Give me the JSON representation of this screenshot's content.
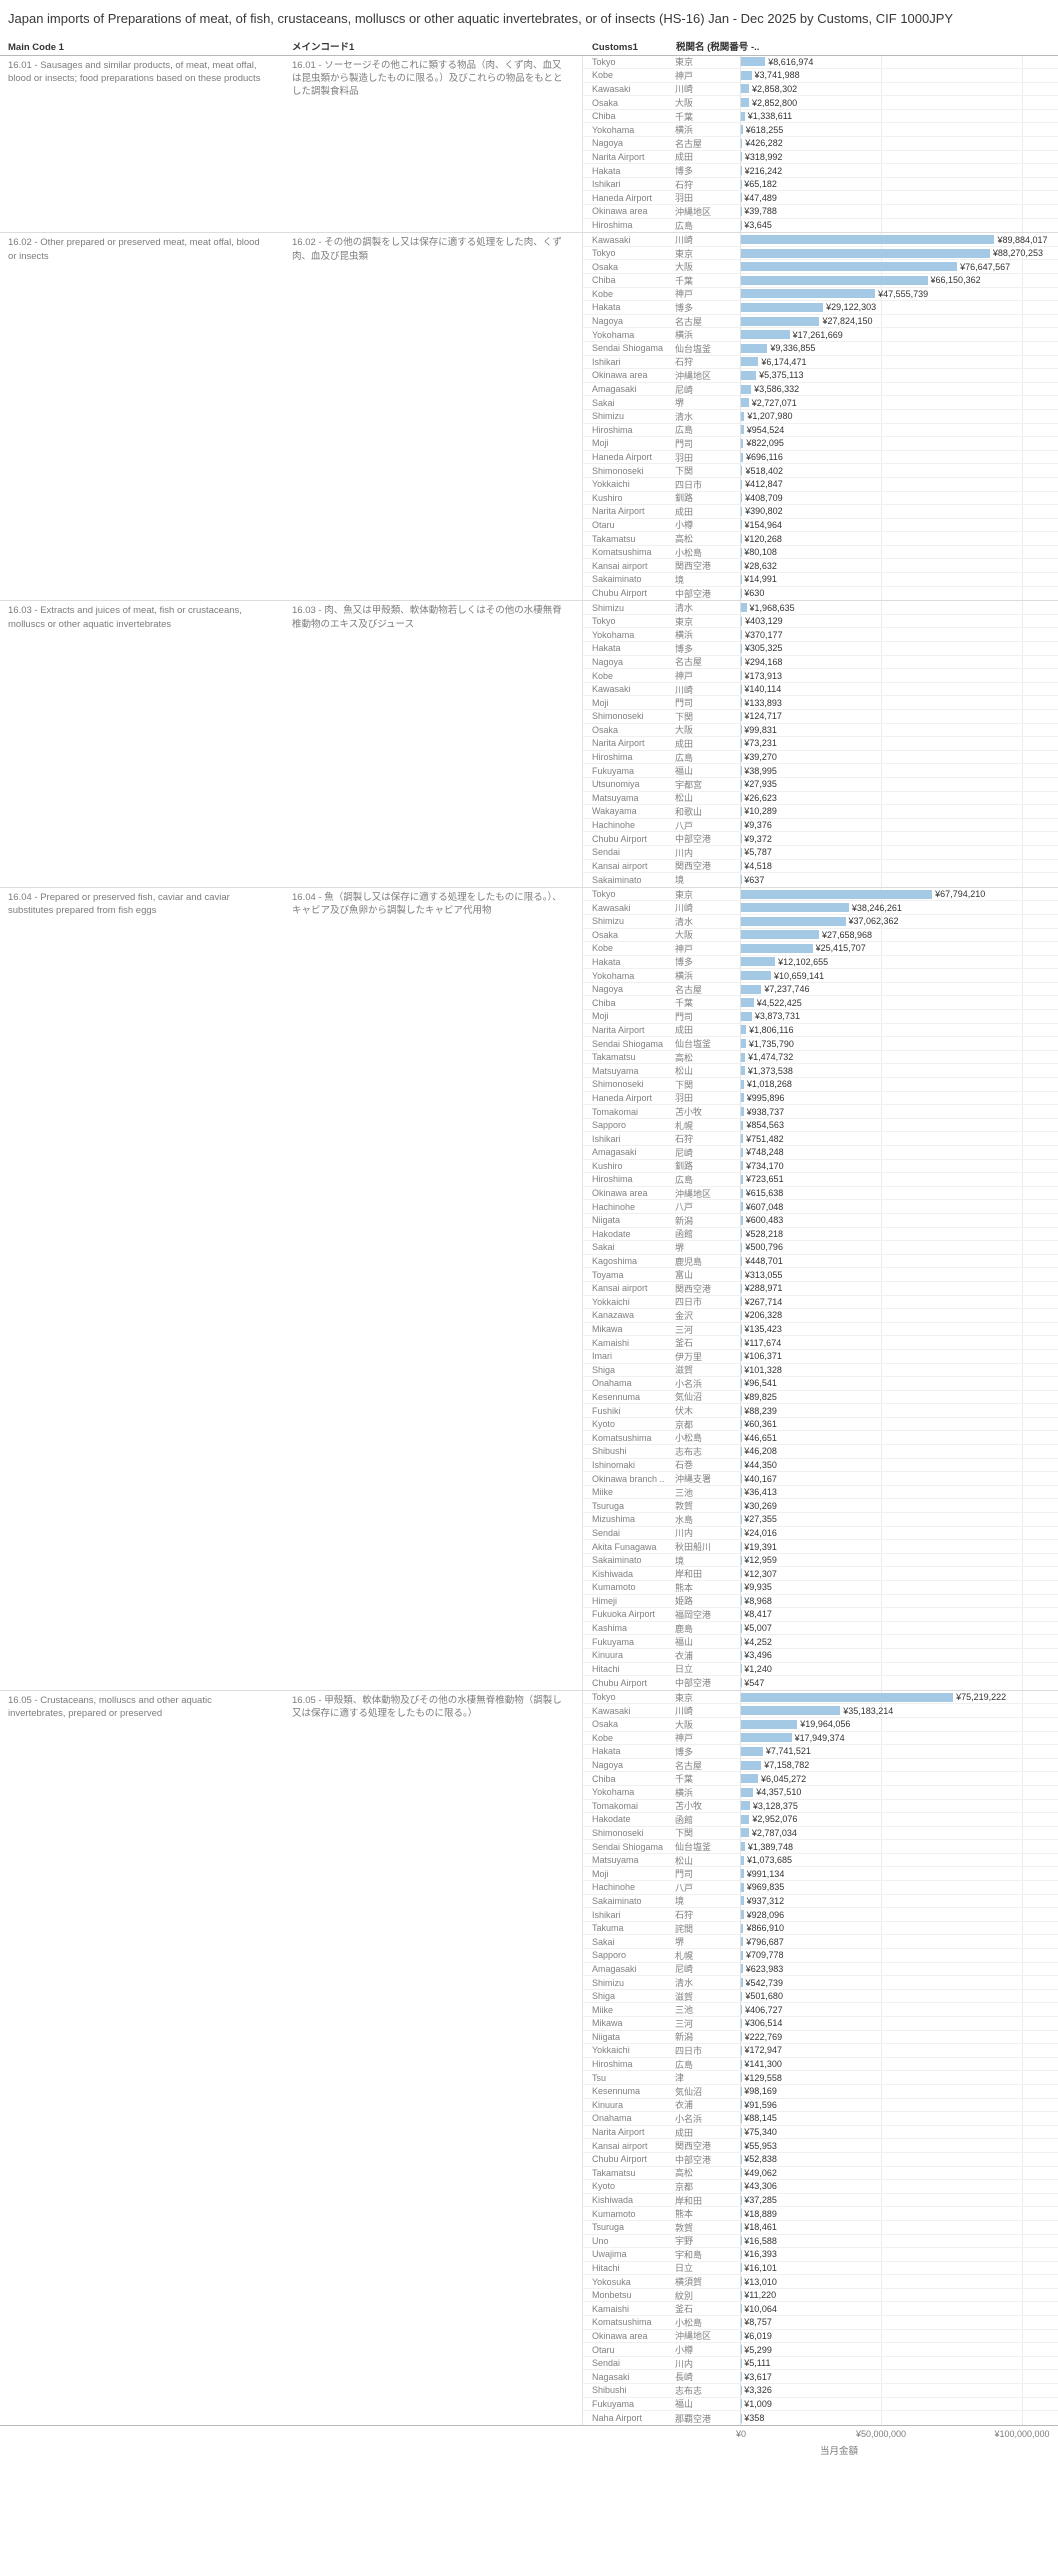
{
  "title": "Japan imports of Preparations of meat, of fish, crustaceans, molluscs or other aquatic invertebrates, or of insects (HS-16) Jan - Dec 2025 by Customs, CIF 1000JPY",
  "columns": {
    "main_code": "Main Code 1",
    "main_code_jp": "メインコード1",
    "customs": "Customs1",
    "customs_jp": "税関名 (税関番号 -.."
  },
  "colors": {
    "bar": "#a3c9e5"
  },
  "chart_data": {
    "type": "bar",
    "orientation": "horizontal",
    "xlabel": "当月金額",
    "xlim": [
      0,
      100000000
    ],
    "x_ticks": [
      0,
      50000000,
      100000000
    ],
    "x_tick_labels": [
      "¥0",
      "¥50,000,000",
      "¥100,000,000"
    ],
    "grid": "vertical",
    "value_prefix": "¥",
    "sections": [
      {
        "code": "16.01",
        "label_en": "16.01 - Sausages and similar products, of meat, meat offal, blood or insects; food preparations based on these products",
        "label_ja": "16.01 - ソーセージその他これに類する物品（肉、くず肉、血又は昆虫類から製造したものに限る。）及びこれらの物品をもととした調製食料品",
        "rows": [
          [
            "Tokyo",
            "東京",
            8616974
          ],
          [
            "Kobe",
            "神戸",
            3741988
          ],
          [
            "Kawasaki",
            "川崎",
            2858302
          ],
          [
            "Osaka",
            "大阪",
            2852800
          ],
          [
            "Chiba",
            "千葉",
            1338611
          ],
          [
            "Yokohama",
            "横浜",
            618255
          ],
          [
            "Nagoya",
            "名古屋",
            426282
          ],
          [
            "Narita Airport",
            "成田",
            318992
          ],
          [
            "Hakata",
            "博多",
            216242
          ],
          [
            "Ishikari",
            "石狩",
            65182
          ],
          [
            "Haneda Airport",
            "羽田",
            47489
          ],
          [
            "Okinawa area",
            "沖縄地区",
            39788
          ],
          [
            "Hiroshima",
            "広島",
            3645
          ]
        ]
      },
      {
        "code": "16.02",
        "label_en": "16.02 - Other prepared or preserved meat, meat offal, blood or insects",
        "label_ja": "16.02 - その他の調製をし又は保存に適する処理をした肉、くず肉、血及び昆虫類",
        "rows": [
          [
            "Kawasaki",
            "川崎",
            89884017
          ],
          [
            "Tokyo",
            "東京",
            88270253
          ],
          [
            "Osaka",
            "大阪",
            76647567
          ],
          [
            "Chiba",
            "千葉",
            66150362
          ],
          [
            "Kobe",
            "神戸",
            47555739
          ],
          [
            "Hakata",
            "博多",
            29122303
          ],
          [
            "Nagoya",
            "名古屋",
            27824150
          ],
          [
            "Yokohama",
            "横浜",
            17261669
          ],
          [
            "Sendai Shiogama",
            "仙台塩釜",
            9336855
          ],
          [
            "Ishikari",
            "石狩",
            6174471
          ],
          [
            "Okinawa area",
            "沖縄地区",
            5375113
          ],
          [
            "Amagasaki",
            "尼崎",
            3586332
          ],
          [
            "Sakai",
            "堺",
            2727071
          ],
          [
            "Shimizu",
            "清水",
            1207980
          ],
          [
            "Hiroshima",
            "広島",
            954524
          ],
          [
            "Moji",
            "門司",
            822095
          ],
          [
            "Haneda Airport",
            "羽田",
            696116
          ],
          [
            "Shimonoseki",
            "下関",
            518402
          ],
          [
            "Yokkaichi",
            "四日市",
            412847
          ],
          [
            "Kushiro",
            "釧路",
            408709
          ],
          [
            "Narita Airport",
            "成田",
            390802
          ],
          [
            "Otaru",
            "小樽",
            154964
          ],
          [
            "Takamatsu",
            "高松",
            120268
          ],
          [
            "Komatsushima",
            "小松島",
            80108
          ],
          [
            "Kansai airport",
            "関西空港",
            28632
          ],
          [
            "Sakaiminato",
            "境",
            14991
          ],
          [
            "Chubu Airport",
            "中部空港",
            630
          ]
        ]
      },
      {
        "code": "16.03",
        "label_en": "16.03 - Extracts and juices of meat, fish or crustaceans, molluscs or other aquatic invertebrates",
        "label_ja": "16.03 - 肉、魚又は甲殻類、軟体動物若しくはその他の水棲無脊椎動物のエキス及びジュース",
        "rows": [
          [
            "Shimizu",
            "清水",
            1968635
          ],
          [
            "Tokyo",
            "東京",
            403129
          ],
          [
            "Yokohama",
            "横浜",
            370177
          ],
          [
            "Hakata",
            "博多",
            305325
          ],
          [
            "Nagoya",
            "名古屋",
            294168
          ],
          [
            "Kobe",
            "神戸",
            173913
          ],
          [
            "Kawasaki",
            "川崎",
            140114
          ],
          [
            "Moji",
            "門司",
            133893
          ],
          [
            "Shimonoseki",
            "下関",
            124717
          ],
          [
            "Osaka",
            "大阪",
            99831
          ],
          [
            "Narita Airport",
            "成田",
            73231
          ],
          [
            "Hiroshima",
            "広島",
            39270
          ],
          [
            "Fukuyama",
            "福山",
            38995
          ],
          [
            "Utsunomiya",
            "宇都宮",
            27935
          ],
          [
            "Matsuyama",
            "松山",
            26623
          ],
          [
            "Wakayama",
            "和歌山",
            10289
          ],
          [
            "Hachinohe",
            "八戸",
            9376
          ],
          [
            "Chubu Airport",
            "中部空港",
            9372
          ],
          [
            "Sendai",
            "川内",
            5787
          ],
          [
            "Kansai airport",
            "関西空港",
            4518
          ],
          [
            "Sakaiminato",
            "境",
            637
          ]
        ]
      },
      {
        "code": "16.04",
        "label_en": "16.04 - Prepared or preserved fish, caviar and caviar substitutes prepared from fish eggs",
        "label_ja": "16.04 - 魚（調製し又は保存に適する処理をしたものに限る。）、キャビア及び魚卵から調製したキャビア代用物",
        "rows": [
          [
            "Tokyo",
            "東京",
            67794210
          ],
          [
            "Kawasaki",
            "川崎",
            38246261
          ],
          [
            "Shimizu",
            "清水",
            37062362
          ],
          [
            "Osaka",
            "大阪",
            27658968
          ],
          [
            "Kobe",
            "神戸",
            25415707
          ],
          [
            "Hakata",
            "博多",
            12102655
          ],
          [
            "Yokohama",
            "横浜",
            10659141
          ],
          [
            "Nagoya",
            "名古屋",
            7237746
          ],
          [
            "Chiba",
            "千葉",
            4522425
          ],
          [
            "Moji",
            "門司",
            3873731
          ],
          [
            "Narita Airport",
            "成田",
            1806116
          ],
          [
            "Sendai Shiogama",
            "仙台塩釜",
            1735790
          ],
          [
            "Takamatsu",
            "高松",
            1474732
          ],
          [
            "Matsuyama",
            "松山",
            1373538
          ],
          [
            "Shimonoseki",
            "下関",
            1018268
          ],
          [
            "Haneda Airport",
            "羽田",
            995896
          ],
          [
            "Tomakomai",
            "苫小牧",
            938737
          ],
          [
            "Sapporo",
            "札幌",
            854563
          ],
          [
            "Ishikari",
            "石狩",
            751482
          ],
          [
            "Amagasaki",
            "尼崎",
            748248
          ],
          [
            "Kushiro",
            "釧路",
            734170
          ],
          [
            "Hiroshima",
            "広島",
            723651
          ],
          [
            "Okinawa area",
            "沖縄地区",
            615638
          ],
          [
            "Hachinohe",
            "八戸",
            607048
          ],
          [
            "Niigata",
            "新潟",
            600483
          ],
          [
            "Hakodate",
            "函館",
            528218
          ],
          [
            "Sakai",
            "堺",
            500796
          ],
          [
            "Kagoshima",
            "鹿児島",
            448701
          ],
          [
            "Toyama",
            "富山",
            313055
          ],
          [
            "Kansai airport",
            "関西空港",
            288971
          ],
          [
            "Yokkaichi",
            "四日市",
            267714
          ],
          [
            "Kanazawa",
            "金沢",
            206328
          ],
          [
            "Mikawa",
            "三河",
            135423
          ],
          [
            "Kamaishi",
            "釜石",
            117674
          ],
          [
            "Imari",
            "伊万里",
            106371
          ],
          [
            "Shiga",
            "滋賀",
            101328
          ],
          [
            "Onahama",
            "小名浜",
            96541
          ],
          [
            "Kesennuma",
            "気仙沼",
            89825
          ],
          [
            "Fushiki",
            "伏木",
            88239
          ],
          [
            "Kyoto",
            "京都",
            60361
          ],
          [
            "Komatsushima",
            "小松島",
            46651
          ],
          [
            "Shibushi",
            "志布志",
            46208
          ],
          [
            "Ishinomaki",
            "石巻",
            44350
          ],
          [
            "Okinawa branch ..",
            "沖縄支署",
            40167
          ],
          [
            "Miike",
            "三池",
            36413
          ],
          [
            "Tsuruga",
            "敦賀",
            30269
          ],
          [
            "Mizushima",
            "水島",
            27355
          ],
          [
            "Sendai",
            "川内",
            24016
          ],
          [
            "Akita Funagawa",
            "秋田船川",
            19391
          ],
          [
            "Sakaiminato",
            "境",
            12959
          ],
          [
            "Kishiwada",
            "岸和田",
            12307
          ],
          [
            "Kumamoto",
            "熊本",
            9935
          ],
          [
            "Himeji",
            "姫路",
            8968
          ],
          [
            "Fukuoka Airport",
            "福岡空港",
            8417
          ],
          [
            "Kashima",
            "鹿島",
            5007
          ],
          [
            "Fukuyama",
            "福山",
            4252
          ],
          [
            "Kinuura",
            "衣浦",
            3496
          ],
          [
            "Hitachi",
            "日立",
            1240
          ],
          [
            "Chubu Airport",
            "中部空港",
            547
          ]
        ]
      },
      {
        "code": "16.05",
        "label_en": "16.05 - Crustaceans, molluscs and other aquatic invertebrates, prepared or preserved",
        "label_ja": "16.05 - 甲殻類、軟体動物及びその他の水棲無脊椎動物（調製し又は保存に適する処理をしたものに限る。）",
        "rows": [
          [
            "Tokyo",
            "東京",
            75219222
          ],
          [
            "Kawasaki",
            "川崎",
            35183214
          ],
          [
            "Osaka",
            "大阪",
            19964056
          ],
          [
            "Kobe",
            "神戸",
            17949374
          ],
          [
            "Hakata",
            "博多",
            7741521
          ],
          [
            "Nagoya",
            "名古屋",
            7158782
          ],
          [
            "Chiba",
            "千葉",
            6045272
          ],
          [
            "Yokohama",
            "横浜",
            4357510
          ],
          [
            "Tomakomai",
            "苫小牧",
            3128375
          ],
          [
            "Hakodate",
            "函館",
            2952076
          ],
          [
            "Shimonoseki",
            "下関",
            2787034
          ],
          [
            "Sendai Shiogama",
            "仙台塩釜",
            1389748
          ],
          [
            "Matsuyama",
            "松山",
            1073685
          ],
          [
            "Moji",
            "門司",
            991134
          ],
          [
            "Hachinohe",
            "八戸",
            969835
          ],
          [
            "Sakaiminato",
            "境",
            937312
          ],
          [
            "Ishikari",
            "石狩",
            928096
          ],
          [
            "Takuma",
            "詫間",
            866910
          ],
          [
            "Sakai",
            "堺",
            796687
          ],
          [
            "Sapporo",
            "札幌",
            709778
          ],
          [
            "Amagasaki",
            "尼崎",
            623983
          ],
          [
            "Shimizu",
            "清水",
            542739
          ],
          [
            "Shiga",
            "滋賀",
            501680
          ],
          [
            "Miike",
            "三池",
            406727
          ],
          [
            "Mikawa",
            "三河",
            306514
          ],
          [
            "Niigata",
            "新潟",
            222769
          ],
          [
            "Yokkaichi",
            "四日市",
            172947
          ],
          [
            "Hiroshima",
            "広島",
            141300
          ],
          [
            "Tsu",
            "津",
            129558
          ],
          [
            "Kesennuma",
            "気仙沼",
            98169
          ],
          [
            "Kinuura",
            "衣浦",
            91596
          ],
          [
            "Onahama",
            "小名浜",
            88145
          ],
          [
            "Narita Airport",
            "成田",
            75340
          ],
          [
            "Kansai airport",
            "関西空港",
            55953
          ],
          [
            "Chubu Airport",
            "中部空港",
            52838
          ],
          [
            "Takamatsu",
            "高松",
            49062
          ],
          [
            "Kyoto",
            "京都",
            43306
          ],
          [
            "Kishiwada",
            "岸和田",
            37285
          ],
          [
            "Kumamoto",
            "熊本",
            18889
          ],
          [
            "Tsuruga",
            "敦賀",
            18461
          ],
          [
            "Uno",
            "宇野",
            16588
          ],
          [
            "Uwajima",
            "宇和島",
            16393
          ],
          [
            "Hitachi",
            "日立",
            16101
          ],
          [
            "Yokosuka",
            "横須賀",
            13010
          ],
          [
            "Monbetsu",
            "紋別",
            11220
          ],
          [
            "Kamaishi",
            "釜石",
            10064
          ],
          [
            "Komatsushima",
            "小松島",
            8757
          ],
          [
            "Okinawa area",
            "沖縄地区",
            6019
          ],
          [
            "Otaru",
            "小樽",
            5299
          ],
          [
            "Sendai",
            "川内",
            5111
          ],
          [
            "Nagasaki",
            "長崎",
            3617
          ],
          [
            "Shibushi",
            "志布志",
            3326
          ],
          [
            "Fukuyama",
            "福山",
            1009
          ],
          [
            "Naha Airport",
            "那覇空港",
            358
          ]
        ]
      }
    ]
  }
}
